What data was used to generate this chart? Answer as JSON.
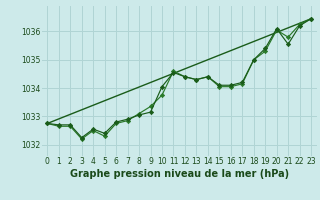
{
  "xlabel": "Graphe pression niveau de la mer (hPa)",
  "background_color": "#cdeaea",
  "grid_color": "#b0d4d4",
  "line_color_dark": "#1a5c1a",
  "line_color_mid": "#2a7a2a",
  "ylim": [
    1031.6,
    1036.9
  ],
  "xlim": [
    -0.5,
    23.5
  ],
  "yticks": [
    1032,
    1033,
    1034,
    1035,
    1036
  ],
  "xticks": [
    0,
    1,
    2,
    3,
    4,
    5,
    6,
    7,
    8,
    9,
    10,
    11,
    12,
    13,
    14,
    15,
    16,
    17,
    18,
    19,
    20,
    21,
    22,
    23
  ],
  "series1": [
    1032.75,
    1032.7,
    1032.7,
    1032.25,
    1032.55,
    1032.4,
    1032.8,
    1032.9,
    1033.05,
    1033.15,
    1034.05,
    1034.55,
    1034.4,
    1034.3,
    1034.4,
    1034.1,
    1034.1,
    1034.2,
    1035.0,
    1035.4,
    1036.1,
    1035.55,
    1036.2,
    1036.45
  ],
  "series2": [
    1032.75,
    1032.65,
    1032.65,
    1032.2,
    1032.5,
    1032.3,
    1032.75,
    1032.85,
    1033.1,
    1033.35,
    1033.75,
    1034.6,
    1034.4,
    1034.3,
    1034.4,
    1034.05,
    1034.05,
    1034.15,
    1035.0,
    1035.3,
    1036.05,
    1035.8,
    1036.25,
    1036.45
  ],
  "trend_x": [
    0,
    23
  ],
  "trend_y": [
    1032.75,
    1036.45
  ],
  "tick_fontsize": 5.5,
  "label_fontsize": 7.0,
  "label_fontweight": "bold"
}
